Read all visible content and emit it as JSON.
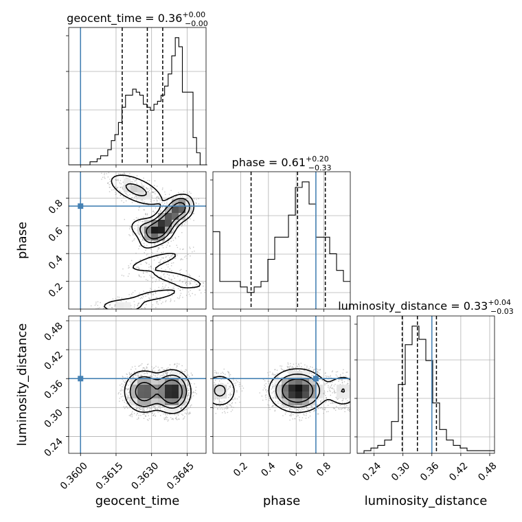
{
  "colors": {
    "truth": "#4682b4",
    "hist": "#000000",
    "quantile": "#000000",
    "grid": "#b0b0b0",
    "density_dark": "#000000",
    "density_light": "#f0f0f0",
    "scatter": "#a0a0a0"
  },
  "chart_data": {
    "type": "corner",
    "parameters": [
      "geocent_time",
      "phase",
      "luminosity_distance"
    ],
    "truths": {
      "geocent_time": 0.36,
      "phase": 0.742,
      "luminosity_distance": 0.36
    },
    "axis_ranges": {
      "geocent_time": [
        0.3595,
        0.3653
      ],
      "phase": [
        0.0,
        0.99
      ],
      "luminosity_distance": [
        0.205,
        0.49
      ]
    },
    "ticks": {
      "geocent_time": {
        "values": [
          0.36,
          0.3615,
          0.363,
          0.3645
        ],
        "labels": [
          "0.3600",
          "0.3615",
          "0.3630",
          "0.3645"
        ]
      },
      "phase": {
        "values": [
          0.2,
          0.4,
          0.6,
          0.8
        ],
        "labels": [
          "0.2",
          "0.4",
          "0.6",
          "0.8"
        ]
      },
      "luminosity_distance": {
        "values": [
          0.24,
          0.3,
          0.36,
          0.42,
          0.48
        ],
        "labels": [
          "0.24",
          "0.30",
          "0.36",
          "0.42",
          "0.48"
        ]
      }
    },
    "titles": {
      "geocent_time": {
        "name": "geocent_time",
        "value": "0.36",
        "plus": "+0.00",
        "minus": "−0.00"
      },
      "phase": {
        "name": "phase",
        "value": "0.61",
        "plus": "+0.20",
        "minus": "−0.33"
      },
      "luminosity_distance": {
        "name": "luminosity_distance",
        "value": "0.33",
        "plus": "+0.04",
        "minus": "−0.03"
      }
    },
    "quantiles": {
      "geocent_time": [
        0.36176,
        0.36282,
        0.36347
      ],
      "phase": [
        0.275,
        0.61,
        0.81
      ],
      "luminosity_distance": [
        0.2985,
        0.33,
        0.3695
      ]
    },
    "histograms": {
      "geocent_time": {
        "edges": [
          0.3595,
          0.35965,
          0.3598,
          0.35995,
          0.3601,
          0.36025,
          0.3604,
          0.36055,
          0.3607,
          0.36085,
          0.361,
          0.36115,
          0.3613,
          0.36145,
          0.3616,
          0.36175,
          0.3619,
          0.36205,
          0.3622,
          0.36235,
          0.3625,
          0.36265,
          0.3628,
          0.36295,
          0.3631,
          0.36325,
          0.3634,
          0.36355,
          0.3637,
          0.36385,
          0.364,
          0.36415,
          0.3643,
          0.36445,
          0.3646,
          0.36475,
          0.3649,
          0.36505,
          0.3652,
          0.36535
        ],
        "counts": [
          0,
          0,
          0,
          0,
          0,
          0,
          1,
          1,
          2,
          3,
          3,
          5,
          8,
          10,
          14,
          19,
          23,
          23,
          25,
          24,
          23,
          20,
          19,
          18,
          20,
          21,
          23,
          26,
          30,
          36,
          42,
          39,
          24,
          24,
          24,
          9,
          4,
          0,
          0
        ]
      },
      "phase": {
        "edges": [
          0.0,
          0.0495,
          0.099,
          0.1485,
          0.198,
          0.2475,
          0.297,
          0.3465,
          0.396,
          0.4455,
          0.495,
          0.5445,
          0.594,
          0.6435,
          0.693,
          0.7425,
          0.792,
          0.8415,
          0.891,
          0.9405,
          0.99
        ],
        "counts": [
          14,
          5,
          5,
          5,
          4,
          3,
          4,
          5,
          9,
          13,
          13,
          17,
          22,
          23,
          19,
          13,
          13,
          10,
          7,
          5
        ]
      },
      "luminosity_distance": {
        "edges": [
          0.205,
          0.21925,
          0.2335,
          0.24775,
          0.262,
          0.27625,
          0.2905,
          0.30475,
          0.319,
          0.33325,
          0.3475,
          0.36175,
          0.376,
          0.39025,
          0.4045,
          0.41875,
          0.433,
          0.44725,
          0.4615,
          0.47575,
          0.49
        ],
        "counts": [
          0,
          1,
          2,
          3,
          5,
          12,
          26,
          41,
          48,
          43,
          35,
          19,
          9,
          5,
          3,
          2,
          1,
          1,
          1,
          1
        ]
      }
    },
    "density_2d": {
      "phase_vs_geocent_time": {
        "modes": [
          {
            "x": 0.36355,
            "y": 0.62,
            "sx": 0.0005,
            "sy": 0.09,
            "w": 1.0,
            "rho": 0.75
          },
          {
            "x": 0.36295,
            "y": 0.57,
            "sx": 0.0005,
            "sy": 0.05,
            "w": 0.5,
            "rho": -0.3
          },
          {
            "x": 0.36235,
            "y": 0.86,
            "sx": 0.0007,
            "sy": 0.07,
            "w": 0.45,
            "rho": -0.6
          },
          {
            "x": 0.36425,
            "y": 0.73,
            "sx": 0.0003,
            "sy": 0.05,
            "w": 0.55,
            "rho": 0
          },
          {
            "x": 0.3632,
            "y": 0.35,
            "sx": 0.0008,
            "sy": 0.05,
            "w": 0.25,
            "rho": 0.75
          },
          {
            "x": 0.36405,
            "y": 0.22,
            "sx": 0.0009,
            "sy": 0.05,
            "w": 0.25,
            "rho": -0.7
          },
          {
            "x": 0.36315,
            "y": 0.1,
            "sx": 0.0009,
            "sy": 0.04,
            "w": 0.22,
            "rho": 0.6
          },
          {
            "x": 0.36175,
            "y": 0.02,
            "sx": 0.0006,
            "sy": 0.03,
            "w": 0.3,
            "rho": 0
          }
        ],
        "points": [
          [
            0.36355,
            0.62
          ]
        ]
      },
      "luminosity_distance_vs_geocent_time": {
        "modes": [
          {
            "x": 0.36268,
            "y": 0.333,
            "sx": 0.00042,
            "sy": 0.022,
            "w": 0.8,
            "rho": 0
          },
          {
            "x": 0.36388,
            "y": 0.333,
            "sx": 0.00038,
            "sy": 0.022,
            "w": 1.0,
            "rho": 0
          }
        ]
      },
      "luminosity_distance_vs_phase": {
        "modes": [
          {
            "x": 0.61,
            "y": 0.335,
            "sx": 0.1,
            "sy": 0.022,
            "w": 1.0,
            "rho": 0
          },
          {
            "x": 0.05,
            "y": 0.335,
            "sx": 0.07,
            "sy": 0.02,
            "w": 0.35,
            "rho": 0
          },
          {
            "x": 0.94,
            "y": 0.335,
            "sx": 0.07,
            "sy": 0.02,
            "w": 0.3,
            "rho": 0
          }
        ]
      }
    }
  }
}
